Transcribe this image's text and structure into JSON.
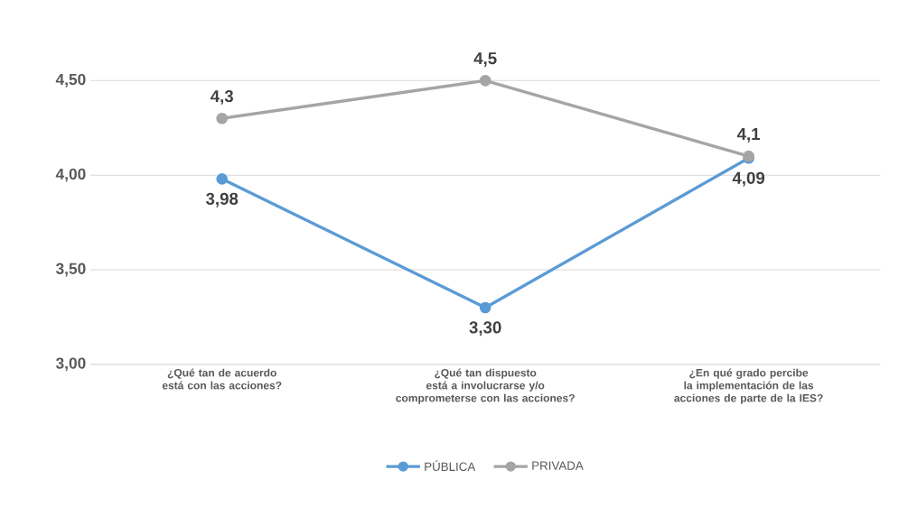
{
  "chart_data": {
    "type": "line",
    "categories": [
      "¿Qué tan de acuerdo está con las acciones?",
      "¿Qué tan dispuesto está a involucrarse y/o comprometerse con las acciones?",
      "¿En qué grado percibe la implementación de las acciones de parte de la IES?"
    ],
    "series": [
      {
        "name": "PÚBLICA",
        "color": "#5b9bd5",
        "values": [
          3.98,
          3.3,
          4.09
        ],
        "value_labels": [
          "3,98",
          "3,30",
          "4,09"
        ]
      },
      {
        "name": "PRIVADA",
        "color": "#a5a5a5",
        "values": [
          4.3,
          4.5,
          4.1
        ],
        "value_labels": [
          "4,3",
          "4,5",
          "4,1"
        ]
      }
    ],
    "ylim": [
      3,
      4.5
    ],
    "yticks": [
      {
        "value": 3,
        "label": "3,00"
      },
      {
        "value": 3.5,
        "label": "3,50"
      },
      {
        "value": 4,
        "label": "4,00"
      },
      {
        "value": 4.5,
        "label": "4,50"
      }
    ],
    "grid": "y",
    "legend": "bottom",
    "marker": "circle",
    "line_style": "solid"
  }
}
